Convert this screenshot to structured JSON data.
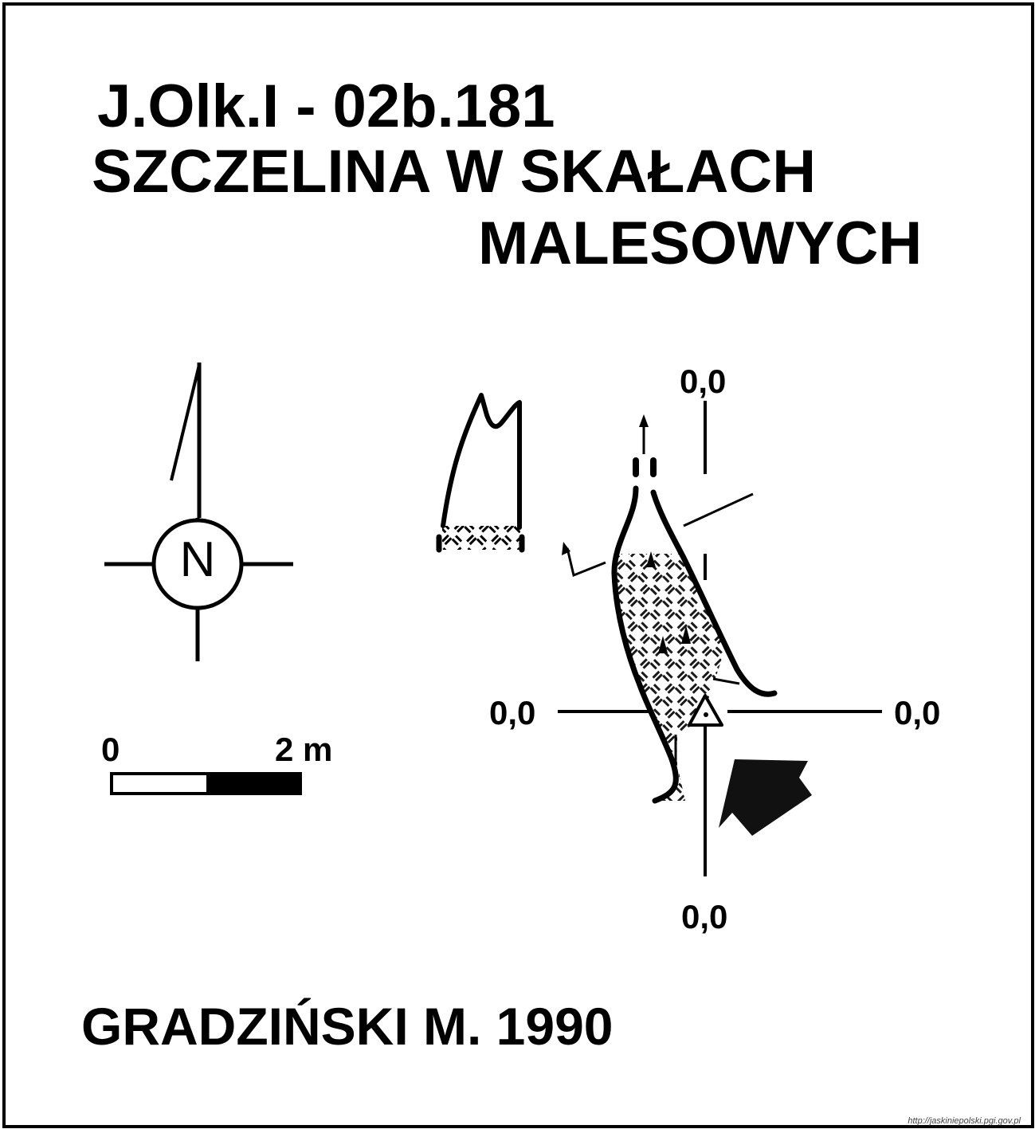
{
  "title": {
    "code": "J.Olk.I - 02b.181",
    "name_line1": "SZCZELINA W SKAŁACH",
    "name_line2": "MALESOWYCH"
  },
  "compass": {
    "letter": "N"
  },
  "scale_bar": {
    "start_label": "0",
    "end_label": "2 m"
  },
  "datum_labels": {
    "top": "0,0",
    "left": "0,0",
    "right": "0,0",
    "bottom": "0,0"
  },
  "author": "GRADZIŃSKI M. 1990",
  "credit": "http://jaskiniepolski.pgi.gov.pl",
  "colors": {
    "ink": "#000000",
    "background": "#ffffff"
  },
  "icons": [
    "north-arrow-icon",
    "compass-rose-icon",
    "entrance-arrow-icon",
    "survey-point-triangle-icon"
  ]
}
